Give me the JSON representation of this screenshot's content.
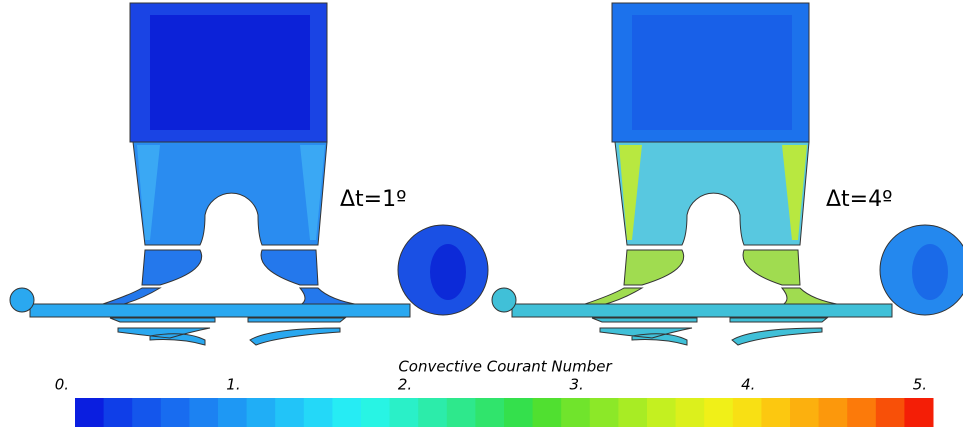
{
  "panels": [
    {
      "label": "Δt=1º"
    },
    {
      "label": "Δt=4º"
    }
  ],
  "colorbar": {
    "title": "Convective Courant Number",
    "range": [
      0,
      5
    ],
    "ticks": [
      {
        "value": 0,
        "label": "0."
      },
      {
        "value": 1,
        "label": "1."
      },
      {
        "value": 2,
        "label": "2."
      },
      {
        "value": 3,
        "label": "3."
      },
      {
        "value": 4,
        "label": "4."
      },
      {
        "value": 5,
        "label": "5."
      }
    ],
    "colors": [
      "#0a1ee0",
      "#0f3ee8",
      "#1456ec",
      "#186cf0",
      "#1c82f2",
      "#1e98f4",
      "#20aef6",
      "#22c4f8",
      "#24d8f8",
      "#26ecf4",
      "#28f4e4",
      "#2af0c8",
      "#2cecaa",
      "#2ee88c",
      "#30e46c",
      "#34e04c",
      "#50e030",
      "#70e42c",
      "#8ce828",
      "#a8ec24",
      "#c4f020",
      "#dcf01c",
      "#f0f018",
      "#f8e014",
      "#fcc810",
      "#fcb00e",
      "#fc980c",
      "#fc7a0a",
      "#f85008",
      "#f41e06"
    ]
  }
}
